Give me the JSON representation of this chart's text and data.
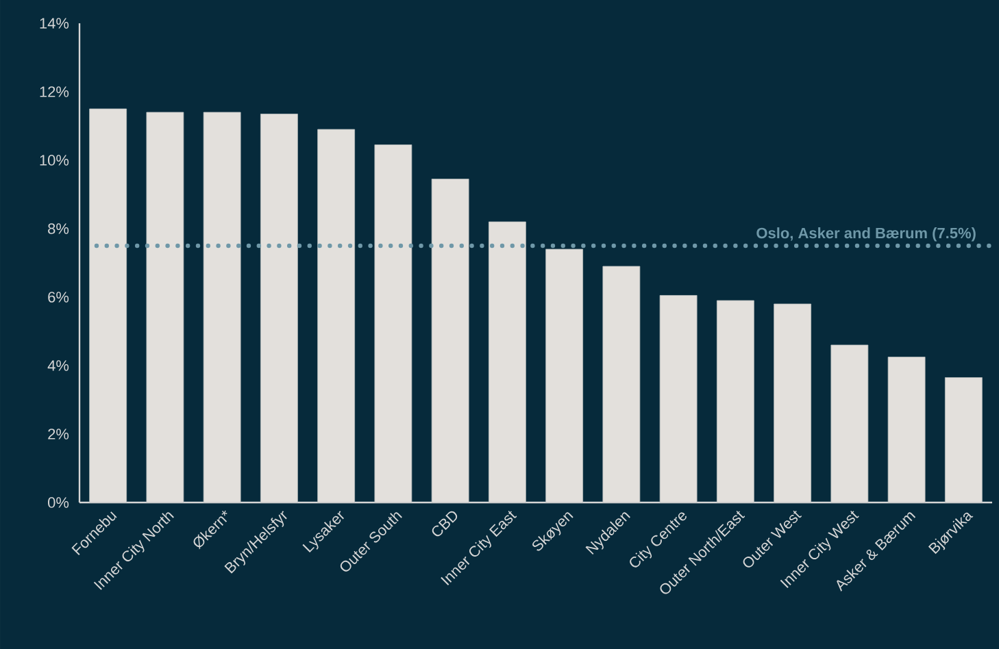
{
  "chart_data": {
    "type": "bar",
    "categories": [
      "Fornebu",
      "Inner City North",
      "Økern*",
      "Bryn/Helsfyr",
      "Lysaker",
      "Outer South",
      "CBD",
      "Inner City East",
      "Skøyen",
      "Nydalen",
      "City Centre",
      "Outer North/East",
      "Outer West",
      "Inner City West",
      "Asker & Bærum",
      "Bjørvika"
    ],
    "values": [
      11.5,
      11.4,
      11.4,
      11.35,
      10.9,
      10.45,
      9.45,
      8.2,
      7.4,
      6.9,
      6.05,
      5.9,
      5.8,
      4.6,
      4.25,
      3.65
    ],
    "color": "#e3e0dc",
    "ylim": [
      0,
      14
    ],
    "yticks": [
      {
        "value": 0,
        "label": "0%"
      },
      {
        "value": 2,
        "label": "2%"
      },
      {
        "value": 4,
        "label": "4%"
      },
      {
        "value": 6,
        "label": "6%"
      },
      {
        "value": 8,
        "label": "8%"
      },
      {
        "value": 10,
        "label": "10%"
      },
      {
        "value": 12,
        "label": "12%"
      },
      {
        "value": 14,
        "label": "14%"
      }
    ],
    "ref_lines": [
      {
        "axis": "y",
        "value": 7.5,
        "label": "Oslo, Asker and Bærum (7.5%)",
        "color": "#6f98a8",
        "line_style": "dotted"
      }
    ]
  }
}
